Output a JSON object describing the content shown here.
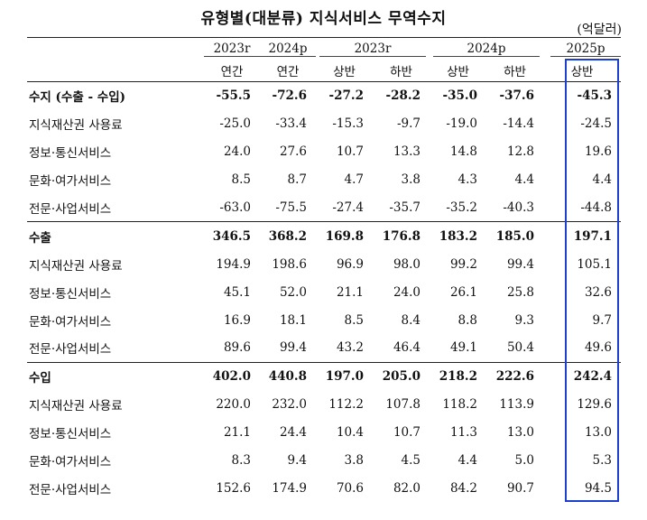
{
  "title": "유형별(대분류) 지식서비스 무역수지",
  "unit": "(억달러)",
  "header": {
    "years": [
      "2023r",
      "2024p",
      "2023r",
      "2024p",
      "2025p"
    ],
    "periods": [
      "연간",
      "연간",
      "상반",
      "하반",
      "상반",
      "하반",
      "상반"
    ]
  },
  "groups": [
    {
      "name": "수지 (수출 - 수입)",
      "values": [
        "-55.5",
        "-72.6",
        "-27.2",
        "-28.2",
        "-35.0",
        "-37.6",
        "-45.3"
      ],
      "rows": [
        {
          "label": "지식재산권 사용료",
          "values": [
            "-25.0",
            "-33.4",
            "-15.3",
            "-9.7",
            "-19.0",
            "-14.4",
            "-24.5"
          ]
        },
        {
          "label": "정보·통신서비스",
          "values": [
            "24.0",
            "27.6",
            "10.7",
            "13.3",
            "14.8",
            "12.8",
            "19.6"
          ]
        },
        {
          "label": "문화·여가서비스",
          "values": [
            "8.5",
            "8.7",
            "4.7",
            "3.8",
            "4.3",
            "4.4",
            "4.4"
          ]
        },
        {
          "label": "전문·사업서비스",
          "values": [
            "-63.0",
            "-75.5",
            "-27.4",
            "-35.7",
            "-35.2",
            "-40.3",
            "-44.8"
          ]
        }
      ]
    },
    {
      "name": "수출",
      "values": [
        "346.5",
        "368.2",
        "169.8",
        "176.8",
        "183.2",
        "185.0",
        "197.1"
      ],
      "rows": [
        {
          "label": "지식재산권 사용료",
          "values": [
            "194.9",
            "198.6",
            "96.9",
            "98.0",
            "99.2",
            "99.4",
            "105.1"
          ]
        },
        {
          "label": "정보·통신서비스",
          "values": [
            "45.1",
            "52.0",
            "21.1",
            "24.0",
            "26.1",
            "25.8",
            "32.6"
          ]
        },
        {
          "label": "문화·여가서비스",
          "values": [
            "16.9",
            "18.1",
            "8.5",
            "8.4",
            "8.8",
            "9.3",
            "9.7"
          ]
        },
        {
          "label": "전문·사업서비스",
          "values": [
            "89.6",
            "99.4",
            "43.2",
            "46.4",
            "49.1",
            "50.4",
            "49.6"
          ]
        }
      ]
    },
    {
      "name": "수입",
      "values": [
        "402.0",
        "440.8",
        "197.0",
        "205.0",
        "218.2",
        "222.6",
        "242.4"
      ],
      "rows": [
        {
          "label": "지식재산권 사용료",
          "values": [
            "220.0",
            "232.0",
            "112.2",
            "107.8",
            "118.2",
            "113.9",
            "129.6"
          ]
        },
        {
          "label": "정보·통신서비스",
          "values": [
            "21.1",
            "24.4",
            "10.4",
            "10.7",
            "11.3",
            "13.0",
            "13.0"
          ]
        },
        {
          "label": "문화·여가서비스",
          "values": [
            "8.3",
            "9.4",
            "3.8",
            "4.5",
            "4.4",
            "5.0",
            "5.3"
          ]
        },
        {
          "label": "전문·사업서비스",
          "values": [
            "152.6",
            "174.9",
            "70.6",
            "82.0",
            "84.2",
            "90.7",
            "94.5"
          ]
        }
      ]
    }
  ],
  "highlight_color": "#1c3fd0"
}
